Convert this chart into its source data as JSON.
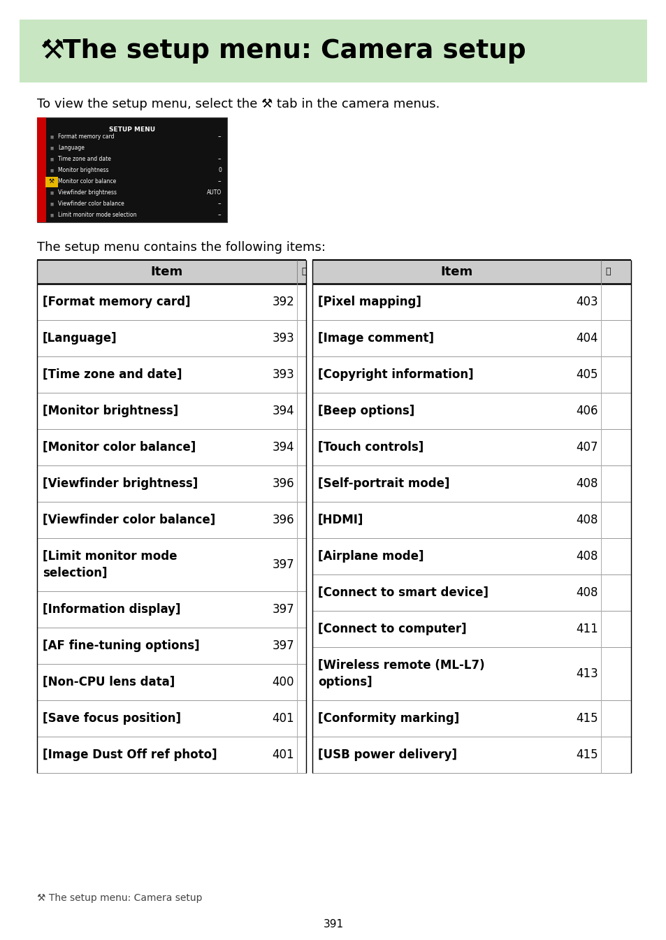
{
  "title_bg": "#c8e6c2",
  "bg_color": "#ffffff",
  "header_bg": "#cccccc",
  "left_rows": [
    {
      "item": "[Format memory card]",
      "page": "392"
    },
    {
      "item": "[Language]",
      "page": "393"
    },
    {
      "item": "[Time zone and date]",
      "page": "393"
    },
    {
      "item": "[Monitor brightness]",
      "page": "394"
    },
    {
      "item": "[Monitor color balance]",
      "page": "394"
    },
    {
      "item": "[Viewfinder brightness]",
      "page": "396"
    },
    {
      "item": "[Viewfinder color balance]",
      "page": "396"
    },
    {
      "item": "[Limit monitor mode\nselection]",
      "page": "397"
    },
    {
      "item": "[Information display]",
      "page": "397"
    },
    {
      "item": "[AF fine-tuning options]",
      "page": "397"
    },
    {
      "item": "[Non-CPU lens data]",
      "page": "400"
    },
    {
      "item": "[Save focus position]",
      "page": "401"
    },
    {
      "item": "[Image Dust Off ref photo]",
      "page": "401"
    }
  ],
  "right_rows": [
    {
      "item": "[Pixel mapping]",
      "page": "403"
    },
    {
      "item": "[Image comment]",
      "page": "404"
    },
    {
      "item": "[Copyright information]",
      "page": "405"
    },
    {
      "item": "[Beep options]",
      "page": "406"
    },
    {
      "item": "[Touch controls]",
      "page": "407"
    },
    {
      "item": "[Self-portrait mode]",
      "page": "408"
    },
    {
      "item": "[HDMI]",
      "page": "408"
    },
    {
      "item": "[Airplane mode]",
      "page": "408"
    },
    {
      "item": "[Connect to smart device]",
      "page": "408"
    },
    {
      "item": "[Connect to computer]",
      "page": "411"
    },
    {
      "item": "[Wireless remote (ML-L7)\noptions]",
      "page": "413"
    },
    {
      "item": "[Conformity marking]",
      "page": "415"
    },
    {
      "item": "[USB power delivery]",
      "page": "415"
    }
  ],
  "page_num": "391",
  "row_heights_left": [
    52,
    52,
    52,
    52,
    52,
    52,
    52,
    76,
    52,
    52,
    52,
    52,
    52
  ],
  "row_heights_right": [
    52,
    52,
    52,
    52,
    52,
    52,
    52,
    52,
    52,
    52,
    76,
    52,
    52
  ]
}
